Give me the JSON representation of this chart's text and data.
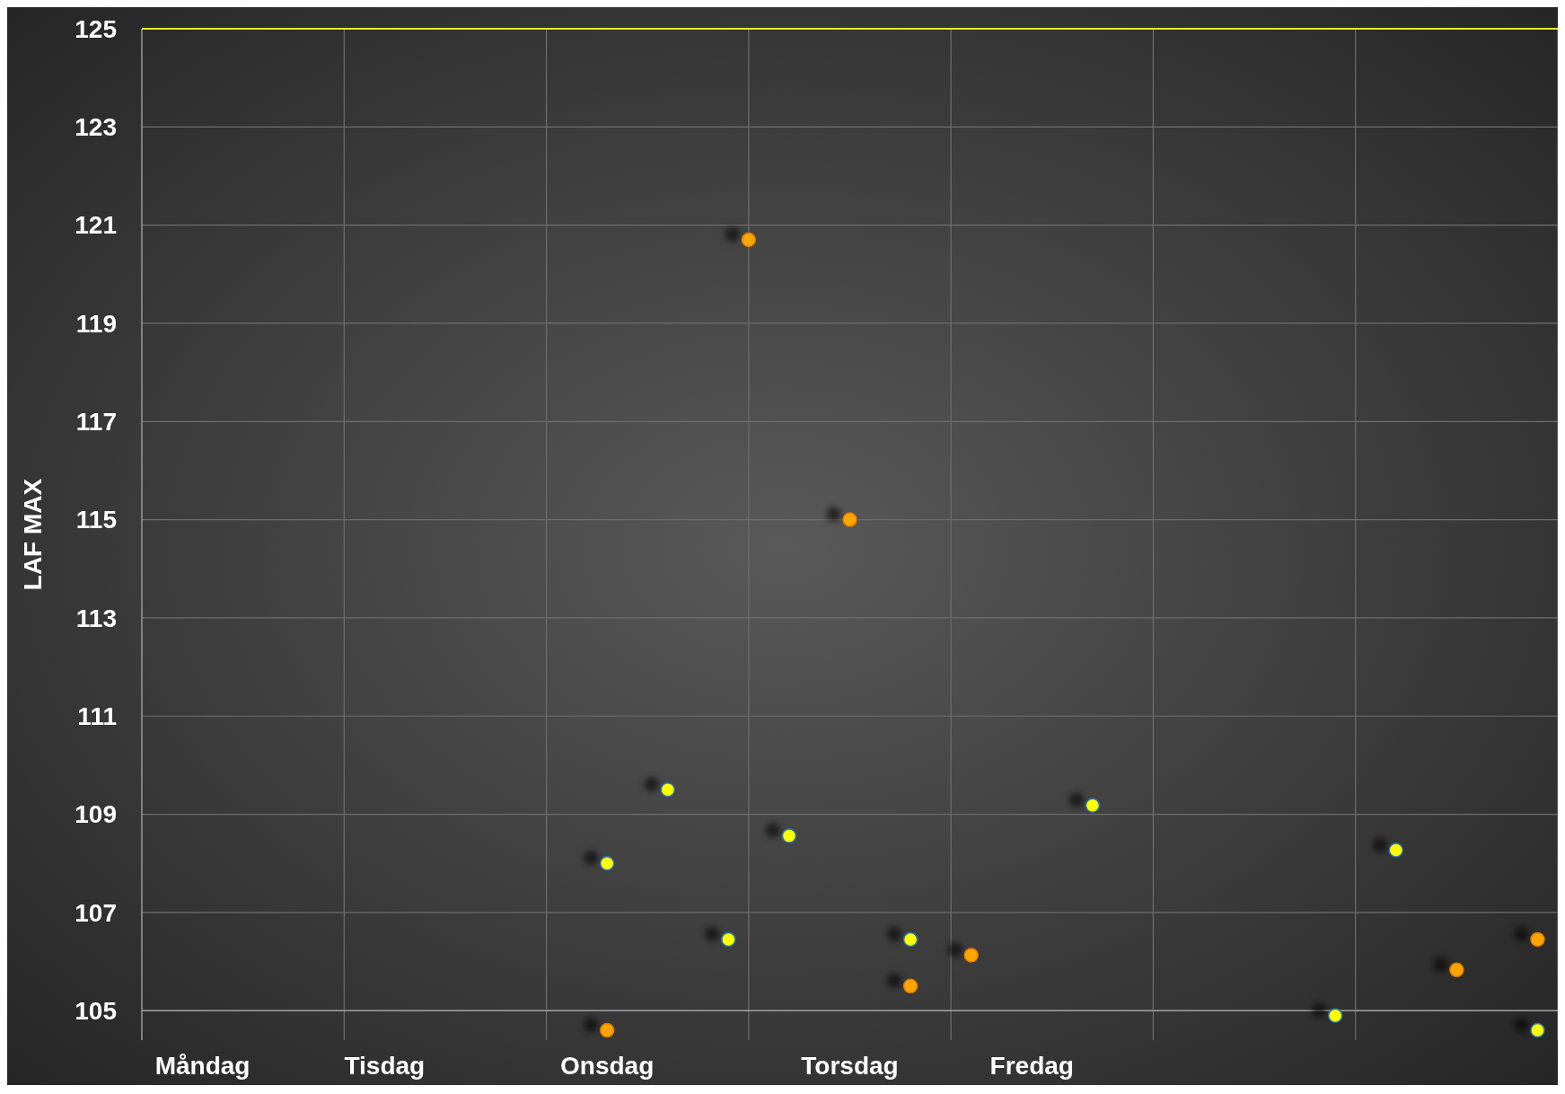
{
  "chart_data": {
    "type": "scatter",
    "ylabel": "LAF MAX",
    "categories": [
      null,
      null,
      null,
      "Måndag",
      null,
      null,
      null,
      null,
      null,
      null,
      null,
      null,
      "Tisdag",
      null,
      null,
      null,
      null,
      null,
      null,
      null,
      null,
      null,
      null,
      "Onsdag",
      null,
      null,
      null,
      null,
      null,
      null,
      null,
      null,
      null,
      null,
      null,
      "Torsdag",
      null,
      null,
      null,
      null,
      null,
      null,
      null,
      null,
      "Fredag",
      null,
      null,
      null,
      null,
      null,
      null,
      null,
      null,
      null,
      null,
      null,
      null,
      null,
      null,
      null,
      null,
      null,
      null,
      null,
      null,
      null,
      null,
      null,
      null,
      null,
      null
    ],
    "ylim": [
      104.4,
      125
    ],
    "yticks": [
      105,
      107,
      109,
      111,
      113,
      115,
      117,
      119,
      121,
      123,
      125
    ],
    "grid": true,
    "marker": "circle",
    "series": [
      {
        "color": "#ffff00",
        "values": [
          null,
          null,
          null,
          null,
          null,
          null,
          null,
          null,
          null,
          null,
          null,
          null,
          null,
          null,
          null,
          null,
          null,
          null,
          null,
          null,
          null,
          null,
          null,
          108.0,
          null,
          null,
          109.5,
          null,
          null,
          106.45,
          null,
          null,
          108.56,
          null,
          null,
          null,
          null,
          null,
          106.45,
          null,
          null,
          null,
          null,
          null,
          null,
          null,
          null,
          109.18,
          null,
          null,
          null,
          null,
          null,
          null,
          null,
          null,
          null,
          null,
          null,
          104.9,
          null,
          null,
          108.27,
          null,
          null,
          null,
          null,
          null,
          null,
          104.6,
          null
        ]
      },
      {
        "color": "#ffa500",
        "values": [
          null,
          null,
          null,
          null,
          null,
          null,
          null,
          null,
          null,
          null,
          null,
          null,
          null,
          null,
          null,
          null,
          null,
          null,
          null,
          null,
          null,
          null,
          null,
          104.6,
          null,
          null,
          null,
          null,
          null,
          null,
          120.7,
          null,
          null,
          null,
          null,
          115.0,
          null,
          null,
          105.5,
          null,
          null,
          106.13,
          null,
          null,
          null,
          null,
          null,
          null,
          null,
          null,
          null,
          null,
          null,
          null,
          null,
          null,
          null,
          null,
          null,
          null,
          null,
          null,
          null,
          null,
          null,
          105.83,
          null,
          null,
          null,
          106.45,
          null
        ]
      }
    ],
    "ref_lines": [
      {
        "axis": "y",
        "value": 125,
        "label": null,
        "color": "#e8e83a"
      }
    ]
  }
}
